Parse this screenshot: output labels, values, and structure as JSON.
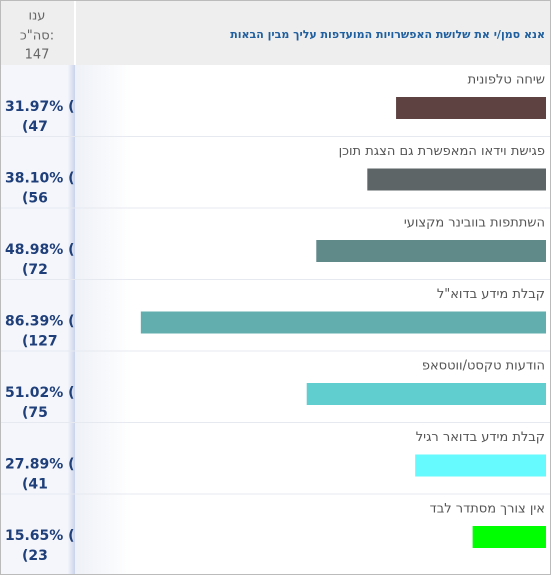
{
  "chart_data": {
    "type": "hbar",
    "title": "אנא סמן/י את שלושת האפשרויות המועדפות עליך מבין הבאות",
    "respondents_label": "ענו",
    "total_label": "סה\"כ:",
    "total": 147,
    "categories": [
      "שיחה טלפונית",
      "פגישת וידאו המאפשרת גם הצגת תוכן",
      "השתתפות בוובינר מקצועי",
      "קבלת מידע בדוא\"ל",
      "הודעות טקסט/ווטסאפ",
      "קבלת מידע בדואר רגיל",
      "אין צורך מסתדר לבד"
    ],
    "values": [
      31.97,
      38.1,
      48.98,
      86.39,
      51.02,
      27.89,
      15.65
    ],
    "value_labels": [
      "31.97% (",
      "38.10% (",
      "48.98% (",
      "86.39% (",
      "51.02% (",
      "27.89% (",
      "15.65% ("
    ],
    "counts": [
      47,
      56,
      72,
      127,
      75,
      41,
      23
    ],
    "count_labels": [
      "(47",
      "(56",
      "(72",
      "(127",
      "(75",
      "(41",
      "(23"
    ],
    "colors": [
      "#5e4141",
      "#5e6566",
      "#5f8a89",
      "#62aeae",
      "#60cdce",
      "#66f9fe",
      "#00ff00"
    ]
  }
}
